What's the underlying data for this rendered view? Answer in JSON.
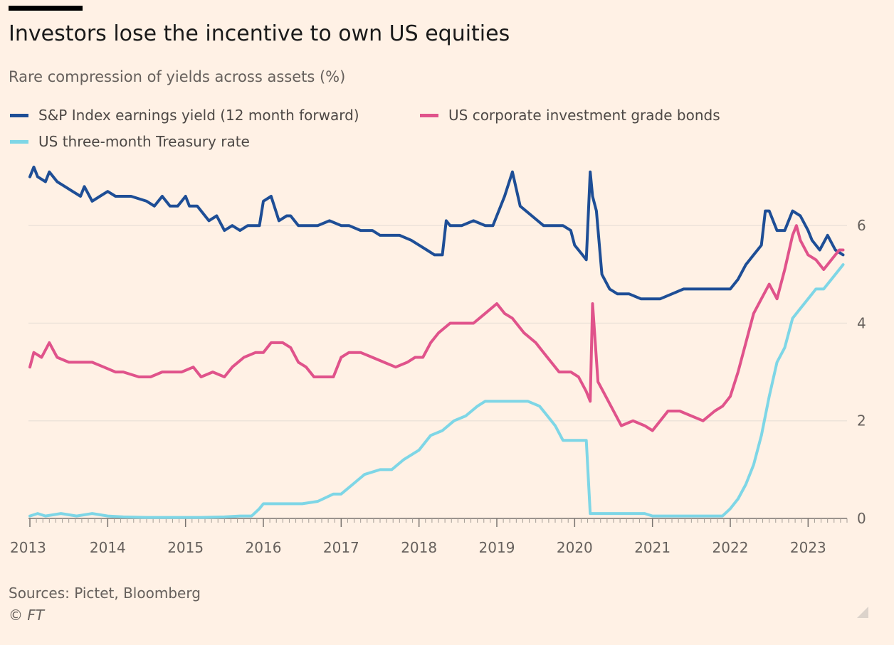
{
  "header": {
    "title": "Investors lose the incentive to own US equities",
    "subtitle": "Rare compression of yields across assets (%)"
  },
  "footer": {
    "source": "Sources: Pictet, Bloomberg",
    "credit": "© FT"
  },
  "colors": {
    "background": "#fff1e5",
    "sp_earnings_yield": "#1e4e96",
    "corporate_ig_bonds": "#e0538b",
    "treasury_3m": "#7ed6e6",
    "gridline": "#ede3da"
  },
  "chart_data": {
    "type": "line",
    "title": "Investors lose the incentive to own US equities",
    "subtitle": "Rare compression of yields across assets (%)",
    "xlabel": "",
    "ylabel": "",
    "xlim": [
      2013.0,
      2023.5
    ],
    "ylim": [
      0,
      7.3
    ],
    "x_ticks": [
      "2013",
      "2014",
      "2015",
      "2016",
      "2017",
      "2018",
      "2019",
      "2020",
      "2021",
      "2022",
      "2023"
    ],
    "y_ticks": [
      0,
      2,
      4,
      6
    ],
    "y_axis_side": "right",
    "grid": true,
    "legend_position": "top-left",
    "series": [
      {
        "name": "S&P Index earnings yield (12 month forward)",
        "color": "#1e4e96",
        "points": [
          [
            2013.0,
            7.0
          ],
          [
            2013.05,
            7.2
          ],
          [
            2013.1,
            7.0
          ],
          [
            2013.2,
            6.9
          ],
          [
            2013.25,
            7.1
          ],
          [
            2013.35,
            6.9
          ],
          [
            2013.45,
            6.8
          ],
          [
            2013.55,
            6.7
          ],
          [
            2013.65,
            6.6
          ],
          [
            2013.7,
            6.8
          ],
          [
            2013.8,
            6.5
          ],
          [
            2013.9,
            6.6
          ],
          [
            2014.0,
            6.7
          ],
          [
            2014.1,
            6.6
          ],
          [
            2014.2,
            6.6
          ],
          [
            2014.3,
            6.6
          ],
          [
            2014.5,
            6.5
          ],
          [
            2014.6,
            6.4
          ],
          [
            2014.7,
            6.6
          ],
          [
            2014.8,
            6.4
          ],
          [
            2014.9,
            6.4
          ],
          [
            2015.0,
            6.6
          ],
          [
            2015.05,
            6.4
          ],
          [
            2015.15,
            6.4
          ],
          [
            2015.3,
            6.1
          ],
          [
            2015.4,
            6.2
          ],
          [
            2015.5,
            5.9
          ],
          [
            2015.6,
            6.0
          ],
          [
            2015.7,
            5.9
          ],
          [
            2015.8,
            6.0
          ],
          [
            2015.95,
            6.0
          ],
          [
            2016.0,
            6.5
          ],
          [
            2016.1,
            6.6
          ],
          [
            2016.2,
            6.1
          ],
          [
            2016.3,
            6.2
          ],
          [
            2016.35,
            6.2
          ],
          [
            2016.45,
            6.0
          ],
          [
            2016.55,
            6.0
          ],
          [
            2016.7,
            6.0
          ],
          [
            2016.85,
            6.1
          ],
          [
            2017.0,
            6.0
          ],
          [
            2017.1,
            6.0
          ],
          [
            2017.25,
            5.9
          ],
          [
            2017.4,
            5.9
          ],
          [
            2017.5,
            5.8
          ],
          [
            2017.6,
            5.8
          ],
          [
            2017.75,
            5.8
          ],
          [
            2017.9,
            5.7
          ],
          [
            2018.0,
            5.6
          ],
          [
            2018.1,
            5.5
          ],
          [
            2018.2,
            5.4
          ],
          [
            2018.3,
            5.4
          ],
          [
            2018.35,
            6.1
          ],
          [
            2018.4,
            6.0
          ],
          [
            2018.55,
            6.0
          ],
          [
            2018.7,
            6.1
          ],
          [
            2018.85,
            6.0
          ],
          [
            2018.95,
            6.0
          ],
          [
            2019.1,
            6.6
          ],
          [
            2019.2,
            7.1
          ],
          [
            2019.3,
            6.4
          ],
          [
            2019.45,
            6.2
          ],
          [
            2019.6,
            6.0
          ],
          [
            2019.75,
            6.0
          ],
          [
            2019.85,
            6.0
          ],
          [
            2019.95,
            5.9
          ],
          [
            2020.0,
            5.6
          ],
          [
            2020.1,
            5.4
          ],
          [
            2020.15,
            5.3
          ],
          [
            2020.2,
            7.1
          ],
          [
            2020.23,
            6.6
          ],
          [
            2020.28,
            6.3
          ],
          [
            2020.35,
            5.0
          ],
          [
            2020.45,
            4.7
          ],
          [
            2020.55,
            4.6
          ],
          [
            2020.7,
            4.6
          ],
          [
            2020.85,
            4.5
          ],
          [
            2021.0,
            4.5
          ],
          [
            2021.1,
            4.5
          ],
          [
            2021.25,
            4.6
          ],
          [
            2021.4,
            4.7
          ],
          [
            2021.55,
            4.7
          ],
          [
            2021.7,
            4.7
          ],
          [
            2021.85,
            4.7
          ],
          [
            2022.0,
            4.7
          ],
          [
            2022.1,
            4.9
          ],
          [
            2022.2,
            5.2
          ],
          [
            2022.3,
            5.4
          ],
          [
            2022.4,
            5.6
          ],
          [
            2022.45,
            6.3
          ],
          [
            2022.5,
            6.3
          ],
          [
            2022.6,
            5.9
          ],
          [
            2022.7,
            5.9
          ],
          [
            2022.8,
            6.3
          ],
          [
            2022.9,
            6.2
          ],
          [
            2023.0,
            5.9
          ],
          [
            2023.05,
            5.7
          ],
          [
            2023.15,
            5.5
          ],
          [
            2023.25,
            5.8
          ],
          [
            2023.35,
            5.5
          ],
          [
            2023.45,
            5.4
          ]
        ]
      },
      {
        "name": "US corporate investment grade bonds",
        "color": "#e0538b",
        "points": [
          [
            2013.0,
            3.1
          ],
          [
            2013.05,
            3.4
          ],
          [
            2013.15,
            3.3
          ],
          [
            2013.25,
            3.6
          ],
          [
            2013.35,
            3.3
          ],
          [
            2013.5,
            3.2
          ],
          [
            2013.65,
            3.2
          ],
          [
            2013.8,
            3.2
          ],
          [
            2013.95,
            3.1
          ],
          [
            2014.1,
            3.0
          ],
          [
            2014.2,
            3.0
          ],
          [
            2014.4,
            2.9
          ],
          [
            2014.55,
            2.9
          ],
          [
            2014.7,
            3.0
          ],
          [
            2014.8,
            3.0
          ],
          [
            2014.95,
            3.0
          ],
          [
            2015.1,
            3.1
          ],
          [
            2015.2,
            2.9
          ],
          [
            2015.35,
            3.0
          ],
          [
            2015.5,
            2.9
          ],
          [
            2015.6,
            3.1
          ],
          [
            2015.75,
            3.3
          ],
          [
            2015.9,
            3.4
          ],
          [
            2016.0,
            3.4
          ],
          [
            2016.1,
            3.6
          ],
          [
            2016.25,
            3.6
          ],
          [
            2016.35,
            3.5
          ],
          [
            2016.45,
            3.2
          ],
          [
            2016.55,
            3.1
          ],
          [
            2016.65,
            2.9
          ],
          [
            2016.8,
            2.9
          ],
          [
            2016.9,
            2.9
          ],
          [
            2017.0,
            3.3
          ],
          [
            2017.1,
            3.4
          ],
          [
            2017.25,
            3.4
          ],
          [
            2017.4,
            3.3
          ],
          [
            2017.55,
            3.2
          ],
          [
            2017.7,
            3.1
          ],
          [
            2017.85,
            3.2
          ],
          [
            2017.95,
            3.3
          ],
          [
            2018.05,
            3.3
          ],
          [
            2018.15,
            3.6
          ],
          [
            2018.25,
            3.8
          ],
          [
            2018.4,
            4.0
          ],
          [
            2018.55,
            4.0
          ],
          [
            2018.7,
            4.0
          ],
          [
            2018.85,
            4.2
          ],
          [
            2019.0,
            4.4
          ],
          [
            2019.1,
            4.2
          ],
          [
            2019.2,
            4.1
          ],
          [
            2019.35,
            3.8
          ],
          [
            2019.5,
            3.6
          ],
          [
            2019.6,
            3.4
          ],
          [
            2019.7,
            3.2
          ],
          [
            2019.8,
            3.0
          ],
          [
            2019.95,
            3.0
          ],
          [
            2020.05,
            2.9
          ],
          [
            2020.15,
            2.6
          ],
          [
            2020.2,
            2.4
          ],
          [
            2020.23,
            4.4
          ],
          [
            2020.3,
            2.8
          ],
          [
            2020.4,
            2.5
          ],
          [
            2020.5,
            2.2
          ],
          [
            2020.6,
            1.9
          ],
          [
            2020.75,
            2.0
          ],
          [
            2020.9,
            1.9
          ],
          [
            2021.0,
            1.8
          ],
          [
            2021.1,
            2.0
          ],
          [
            2021.2,
            2.2
          ],
          [
            2021.35,
            2.2
          ],
          [
            2021.5,
            2.1
          ],
          [
            2021.65,
            2.0
          ],
          [
            2021.8,
            2.2
          ],
          [
            2021.9,
            2.3
          ],
          [
            2022.0,
            2.5
          ],
          [
            2022.1,
            3.0
          ],
          [
            2022.2,
            3.6
          ],
          [
            2022.3,
            4.2
          ],
          [
            2022.4,
            4.5
          ],
          [
            2022.5,
            4.8
          ],
          [
            2022.6,
            4.5
          ],
          [
            2022.7,
            5.1
          ],
          [
            2022.8,
            5.8
          ],
          [
            2022.85,
            6.0
          ],
          [
            2022.9,
            5.7
          ],
          [
            2023.0,
            5.4
          ],
          [
            2023.1,
            5.3
          ],
          [
            2023.2,
            5.1
          ],
          [
            2023.3,
            5.3
          ],
          [
            2023.4,
            5.5
          ],
          [
            2023.45,
            5.5
          ]
        ]
      },
      {
        "name": "US three-month Treasury rate",
        "color": "#7ed6e6",
        "points": [
          [
            2013.0,
            0.05
          ],
          [
            2013.1,
            0.1
          ],
          [
            2013.2,
            0.05
          ],
          [
            2013.4,
            0.1
          ],
          [
            2013.6,
            0.05
          ],
          [
            2013.8,
            0.1
          ],
          [
            2014.0,
            0.05
          ],
          [
            2014.2,
            0.03
          ],
          [
            2014.5,
            0.02
          ],
          [
            2014.8,
            0.02
          ],
          [
            2015.2,
            0.02
          ],
          [
            2015.5,
            0.03
          ],
          [
            2015.7,
            0.05
          ],
          [
            2015.85,
            0.05
          ],
          [
            2015.95,
            0.2
          ],
          [
            2016.0,
            0.3
          ],
          [
            2016.2,
            0.3
          ],
          [
            2016.5,
            0.3
          ],
          [
            2016.7,
            0.35
          ],
          [
            2016.9,
            0.5
          ],
          [
            2017.0,
            0.5
          ],
          [
            2017.15,
            0.7
          ],
          [
            2017.3,
            0.9
          ],
          [
            2017.5,
            1.0
          ],
          [
            2017.65,
            1.0
          ],
          [
            2017.8,
            1.2
          ],
          [
            2018.0,
            1.4
          ],
          [
            2018.15,
            1.7
          ],
          [
            2018.3,
            1.8
          ],
          [
            2018.45,
            2.0
          ],
          [
            2018.6,
            2.1
          ],
          [
            2018.75,
            2.3
          ],
          [
            2018.85,
            2.4
          ],
          [
            2019.0,
            2.4
          ],
          [
            2019.2,
            2.4
          ],
          [
            2019.4,
            2.4
          ],
          [
            2019.55,
            2.3
          ],
          [
            2019.65,
            2.1
          ],
          [
            2019.75,
            1.9
          ],
          [
            2019.85,
            1.6
          ],
          [
            2020.0,
            1.6
          ],
          [
            2020.1,
            1.6
          ],
          [
            2020.15,
            1.6
          ],
          [
            2020.2,
            0.1
          ],
          [
            2020.35,
            0.1
          ],
          [
            2020.6,
            0.1
          ],
          [
            2020.9,
            0.1
          ],
          [
            2021.0,
            0.05
          ],
          [
            2021.3,
            0.05
          ],
          [
            2021.6,
            0.05
          ],
          [
            2021.9,
            0.05
          ],
          [
            2022.0,
            0.2
          ],
          [
            2022.1,
            0.4
          ],
          [
            2022.2,
            0.7
          ],
          [
            2022.3,
            1.1
          ],
          [
            2022.4,
            1.7
          ],
          [
            2022.5,
            2.5
          ],
          [
            2022.6,
            3.2
          ],
          [
            2022.7,
            3.5
          ],
          [
            2022.8,
            4.1
          ],
          [
            2022.9,
            4.3
          ],
          [
            2023.0,
            4.5
          ],
          [
            2023.1,
            4.7
          ],
          [
            2023.2,
            4.7
          ],
          [
            2023.3,
            4.9
          ],
          [
            2023.4,
            5.1
          ],
          [
            2023.45,
            5.2
          ]
        ]
      }
    ]
  }
}
